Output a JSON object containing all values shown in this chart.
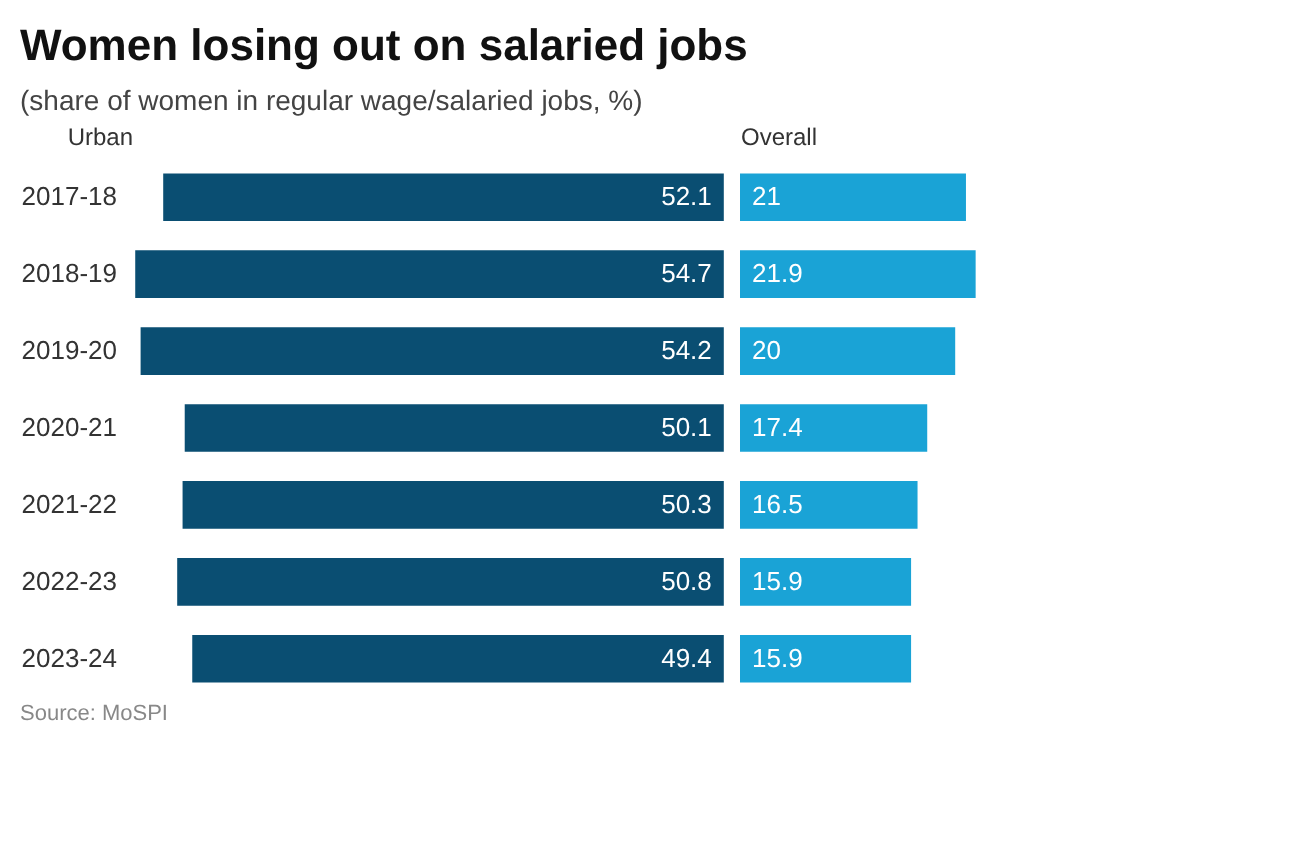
{
  "chart_data": [
    {
      "type": "bar",
      "title": "Women losing out on salaried jobs",
      "subtitle": "(share of women in regular wage/salaried jobs, %)",
      "annotations": [
        "Source: MoSPI"
      ],
      "orientation": "horizontal",
      "xlabel": "Urban",
      "categories": [
        "2017-18",
        "2018-19",
        "2019-20",
        "2020-21",
        "2021-22",
        "2022-23",
        "2023-24"
      ],
      "values": [
        52.1,
        54.7,
        54.2,
        50.1,
        50.3,
        50.8,
        49.4
      ],
      "color": "#0a4e72",
      "xlim": [
        55,
        0
      ],
      "data_labels": true,
      "tick_labels": "y"
    },
    {
      "type": "bar",
      "orientation": "horizontal",
      "xlabel": "Overall",
      "categories": [
        "2017-18",
        "2018-19",
        "2019-20",
        "2020-21",
        "2021-22",
        "2022-23",
        "2023-24"
      ],
      "values": [
        21,
        21.9,
        20,
        17.4,
        16.5,
        15.9,
        15.9
      ],
      "color": "#1aa3d6",
      "xlim": [
        0,
        50
      ],
      "data_labels": true,
      "tick_labels": false
    }
  ]
}
